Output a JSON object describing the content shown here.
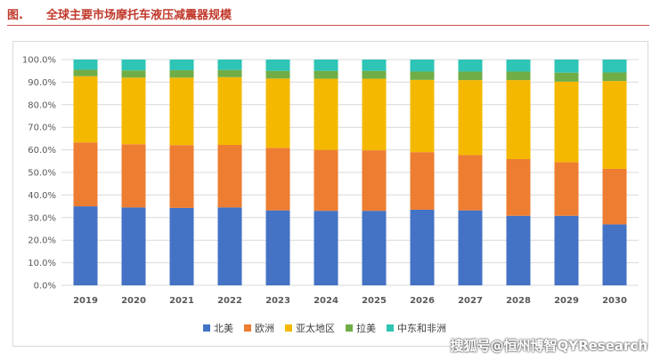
{
  "header": {
    "fig_label": "图.",
    "title": "全球主要市场摩托车液压减震器规模"
  },
  "watermark": "搜狐号@恒州博智QYResearch",
  "colors": {
    "header_text": "#c0392b",
    "series": [
      "#4472c4",
      "#ed7d31",
      "#f5b800",
      "#70ad47",
      "#2ec4b6"
    ],
    "gridline": "#d9d9d9"
  },
  "chart_data": {
    "type": "bar",
    "stacked": true,
    "categories": [
      "2019",
      "2020",
      "2021",
      "2022",
      "2023",
      "2024",
      "2025",
      "2026",
      "2027",
      "2028",
      "2029",
      "2030"
    ],
    "ylim": [
      0,
      100
    ],
    "yticks": [
      "0.0%",
      "10.0%",
      "20.0%",
      "30.0%",
      "40.0%",
      "50.0%",
      "60.0%",
      "70.0%",
      "80.0%",
      "90.0%",
      "100.0%"
    ],
    "grid": true,
    "legend_position": "bottom",
    "series": [
      {
        "name": "北美",
        "values": [
          35.0,
          34.5,
          34.3,
          34.5,
          33.2,
          33.0,
          33.0,
          33.5,
          33.2,
          30.8,
          30.8,
          27.0
        ]
      },
      {
        "name": "欧洲",
        "values": [
          28.3,
          28.0,
          27.8,
          27.7,
          27.7,
          27.0,
          26.8,
          25.5,
          24.5,
          25.1,
          23.7,
          24.6
        ]
      },
      {
        "name": "亚太地区",
        "values": [
          29.3,
          29.5,
          29.9,
          30.0,
          30.7,
          31.5,
          31.7,
          32.0,
          33.2,
          35.0,
          35.7,
          38.9
        ]
      },
      {
        "name": "拉美",
        "values": [
          2.9,
          3.2,
          3.3,
          3.2,
          3.4,
          3.5,
          3.5,
          3.7,
          3.8,
          3.8,
          4.0,
          3.8
        ]
      },
      {
        "name": "中东和非洲",
        "values": [
          4.5,
          4.8,
          4.7,
          4.6,
          5.0,
          5.0,
          5.0,
          5.3,
          5.3,
          5.3,
          5.8,
          5.7
        ]
      }
    ]
  }
}
